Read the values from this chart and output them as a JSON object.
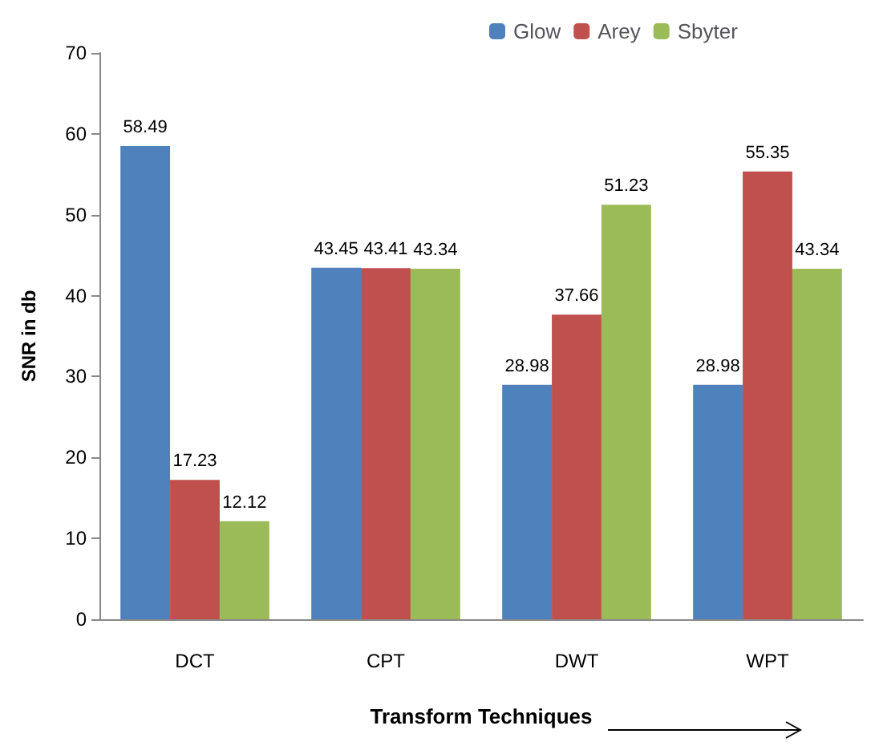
{
  "chart_data": {
    "type": "bar",
    "xlabel": "Transform Techniques",
    "ylabel": "SNR in db",
    "categories": [
      "DCT",
      "CPT",
      "DWT",
      "WPT"
    ],
    "series": [
      {
        "name": "Glow",
        "color": "#4f81bd",
        "values": [
          58.49,
          43.45,
          28.98,
          28.98
        ]
      },
      {
        "name": "Arey",
        "color": "#c0504d",
        "values": [
          17.23,
          43.41,
          37.66,
          55.35
        ]
      },
      {
        "name": "Sbyter",
        "color": "#9bbb59",
        "values": [
          12.12,
          43.34,
          51.23,
          43.34
        ]
      }
    ],
    "ylim": [
      0,
      70
    ],
    "yticks": [
      0,
      10,
      20,
      30,
      40,
      50,
      60,
      70
    ],
    "grid": false,
    "legend": "top",
    "data_labels": true
  }
}
